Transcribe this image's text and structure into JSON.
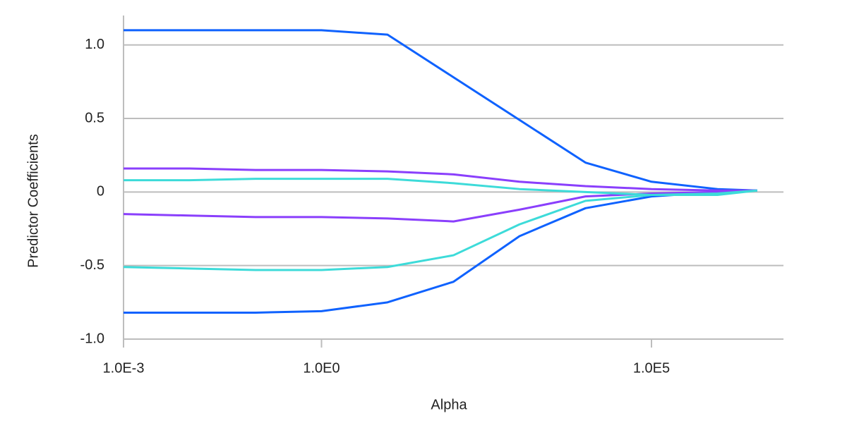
{
  "chart_data": {
    "type": "line",
    "x_label": "Alpha",
    "y_label": "Predictor Coefficients",
    "x": [
      0.001,
      0.01,
      0.1,
      1,
      10,
      100,
      1000,
      10000,
      100000,
      1000000,
      4000000
    ],
    "series": [
      {
        "color": "#0f62fe",
        "values": [
          1.1,
          1.1,
          1.1,
          1.1,
          1.07,
          0.78,
          0.49,
          0.2,
          0.07,
          0.02,
          0.01
        ]
      },
      {
        "color": "#0f62fe",
        "values": [
          -0.82,
          -0.82,
          -0.82,
          -0.81,
          -0.75,
          -0.61,
          -0.3,
          -0.11,
          -0.03,
          0,
          0.01
        ]
      },
      {
        "color": "#8a3ffc",
        "values": [
          0.16,
          0.16,
          0.15,
          0.15,
          0.14,
          0.12,
          0.07,
          0.04,
          0.02,
          0.01,
          0.01
        ]
      },
      {
        "color": "#8a3ffc",
        "values": [
          -0.15,
          -0.16,
          -0.17,
          -0.17,
          -0.18,
          -0.2,
          -0.12,
          -0.03,
          -0.01,
          0,
          0.01
        ]
      },
      {
        "color": "#3ddbd9",
        "values": [
          0.08,
          0.08,
          0.09,
          0.09,
          0.09,
          0.06,
          0.02,
          0,
          -0.02,
          -0.02,
          0.01
        ]
      },
      {
        "color": "#3ddbd9",
        "values": [
          -0.51,
          -0.52,
          -0.53,
          -0.53,
          -0.51,
          -0.43,
          -0.22,
          -0.06,
          -0.02,
          -0.01,
          0.01
        ]
      }
    ],
    "x_log": true,
    "xlim": [
      0.001,
      10000000
    ],
    "xticks": [
      {
        "value": 0.001,
        "label": "1.0E-3"
      },
      {
        "value": 1,
        "label": "1.0E0"
      },
      {
        "value": 100000,
        "label": "1.0E5"
      }
    ],
    "ylim": [
      -1,
      1.2
    ],
    "yticks": [
      {
        "value": -1,
        "label": "-1.0"
      },
      -0.5,
      0,
      0.5,
      {
        "value": 1,
        "label": "1.0"
      }
    ],
    "grid": true
  }
}
